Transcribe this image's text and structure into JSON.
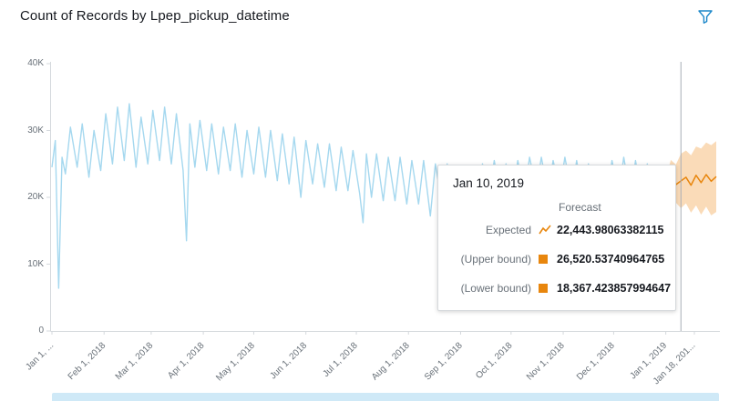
{
  "header": {
    "title": "Count of Records by Lpep_pickup_datetime"
  },
  "colors": {
    "history_line": "#a5d8ef",
    "forecast_line": "#e8860d",
    "forecast_band": "#f6bd7e",
    "accent_blue": "#1b87c9",
    "crosshair": "#a6adb5",
    "scrollbar": "#cfe9f7"
  },
  "tooltip": {
    "date": "Jan 10, 2019",
    "column_header": "Forecast",
    "rows": [
      {
        "label": "Expected",
        "icon": "trend-line",
        "value": "22,443.98063382115"
      },
      {
        "label": "(Upper bound)",
        "icon": "square",
        "value": "26,520.53740964765"
      },
      {
        "label": "(Lower bound)",
        "icon": "square",
        "value": "18,367.423857994647"
      }
    ]
  },
  "chart_data": {
    "type": "line",
    "title": "Count of Records by Lpep_pickup_datetime",
    "xlabel": "Lpep_pickup_datetime",
    "ylabel": "Count of Records",
    "x_unit": "days since Jan 1, 2018",
    "ylim": [
      0,
      40000
    ],
    "grid": false,
    "y_ticks": [
      {
        "value": 0,
        "label": "0"
      },
      {
        "value": 10000,
        "label": "10K"
      },
      {
        "value": 20000,
        "label": "20K"
      },
      {
        "value": 30000,
        "label": "30K"
      },
      {
        "value": 40000,
        "label": "40K"
      }
    ],
    "x_ticks": [
      {
        "day": 0,
        "label": "Jan 1, ..."
      },
      {
        "day": 31,
        "label": "Feb 1, 2018"
      },
      {
        "day": 59,
        "label": "Mar 1, 2018"
      },
      {
        "day": 90,
        "label": "Apr 1, 2018"
      },
      {
        "day": 120,
        "label": "May 1, 2018"
      },
      {
        "day": 151,
        "label": "Jun 1, 2018"
      },
      {
        "day": 181,
        "label": "Jul 1, 2018"
      },
      {
        "day": 212,
        "label": "Aug 1, 2018"
      },
      {
        "day": 243,
        "label": "Sep 1, 2018"
      },
      {
        "day": 273,
        "label": "Oct 1, 2018"
      },
      {
        "day": 304,
        "label": "Nov 1, 2018"
      },
      {
        "day": 334,
        "label": "Dec 1, 2018"
      },
      {
        "day": 365,
        "label": "Jan 1, 2019"
      },
      {
        "day": 382,
        "label": "Jan 18, 201..."
      }
    ],
    "series": [
      {
        "name": "Count of Records",
        "color": "#a5d8ef",
        "points": [
          [
            0,
            24500
          ],
          [
            2,
            28500
          ],
          [
            4,
            6400
          ],
          [
            6,
            26000
          ],
          [
            8,
            23500
          ],
          [
            11,
            30500
          ],
          [
            15,
            24500
          ],
          [
            18,
            31000
          ],
          [
            22,
            23000
          ],
          [
            25,
            30000
          ],
          [
            29,
            24000
          ],
          [
            32,
            32500
          ],
          [
            36,
            25000
          ],
          [
            39,
            33500
          ],
          [
            43,
            25500
          ],
          [
            46,
            34000
          ],
          [
            50,
            24500
          ],
          [
            53,
            32000
          ],
          [
            57,
            25000
          ],
          [
            60,
            33000
          ],
          [
            64,
            25500
          ],
          [
            67,
            33500
          ],
          [
            71,
            25000
          ],
          [
            74,
            32500
          ],
          [
            78,
            24000
          ],
          [
            80,
            13500
          ],
          [
            82,
            31000
          ],
          [
            85,
            24500
          ],
          [
            88,
            31500
          ],
          [
            92,
            24000
          ],
          [
            95,
            31000
          ],
          [
            99,
            23500
          ],
          [
            102,
            30500
          ],
          [
            106,
            24000
          ],
          [
            109,
            31000
          ],
          [
            113,
            23000
          ],
          [
            116,
            30000
          ],
          [
            120,
            23500
          ],
          [
            123,
            30500
          ],
          [
            127,
            23000
          ],
          [
            130,
            30000
          ],
          [
            134,
            22500
          ],
          [
            137,
            29500
          ],
          [
            141,
            22000
          ],
          [
            144,
            29000
          ],
          [
            148,
            20000
          ],
          [
            151,
            28500
          ],
          [
            155,
            22000
          ],
          [
            158,
            28000
          ],
          [
            162,
            21500
          ],
          [
            165,
            28000
          ],
          [
            169,
            21000
          ],
          [
            172,
            27500
          ],
          [
            176,
            21000
          ],
          [
            179,
            27000
          ],
          [
            183,
            20500
          ],
          [
            185,
            16200
          ],
          [
            187,
            26500
          ],
          [
            190,
            20000
          ],
          [
            193,
            26500
          ],
          [
            197,
            19500
          ],
          [
            200,
            26000
          ],
          [
            204,
            19500
          ],
          [
            207,
            26000
          ],
          [
            211,
            19000
          ],
          [
            214,
            25500
          ],
          [
            218,
            19000
          ],
          [
            221,
            25500
          ],
          [
            225,
            17200
          ],
          [
            228,
            25000
          ],
          [
            232,
            19000
          ],
          [
            235,
            25000
          ],
          [
            239,
            18500
          ],
          [
            242,
            24500
          ],
          [
            246,
            17500
          ],
          [
            249,
            24500
          ],
          [
            253,
            20000
          ],
          [
            256,
            25000
          ],
          [
            260,
            20500
          ],
          [
            263,
            25500
          ],
          [
            267,
            20000
          ],
          [
            270,
            25000
          ],
          [
            274,
            20500
          ],
          [
            277,
            25500
          ],
          [
            281,
            20500
          ],
          [
            284,
            26000
          ],
          [
            288,
            21000
          ],
          [
            291,
            26000
          ],
          [
            295,
            20500
          ],
          [
            298,
            25500
          ],
          [
            302,
            21000
          ],
          [
            305,
            26000
          ],
          [
            309,
            20500
          ],
          [
            312,
            25500
          ],
          [
            316,
            19500
          ],
          [
            319,
            25000
          ],
          [
            323,
            18500
          ],
          [
            326,
            24500
          ],
          [
            330,
            20000
          ],
          [
            333,
            25500
          ],
          [
            337,
            20500
          ],
          [
            340,
            26000
          ],
          [
            344,
            20000
          ],
          [
            347,
            25500
          ],
          [
            351,
            19500
          ],
          [
            354,
            25000
          ],
          [
            359,
            16500
          ],
          [
            362,
            24500
          ],
          [
            363,
            23000
          ]
        ]
      }
    ],
    "forecast": {
      "name": "Forecast",
      "color": "#e8860d",
      "band_color": "#f6bd7e",
      "days": [
        363,
        365,
        368,
        371,
        374,
        377,
        380,
        383,
        386,
        389,
        392,
        395
      ],
      "expected": [
        23000,
        20500,
        23800,
        21900,
        22443.98063382115,
        23000,
        21800,
        23300,
        22200,
        23400,
        22400,
        23100
      ],
      "upper": [
        23000,
        22800,
        25600,
        24900,
        26520.53740964765,
        27000,
        26300,
        27600,
        27300,
        28200,
        27800,
        28400
      ],
      "lower": [
        23000,
        18500,
        21500,
        19200,
        18367.423857994647,
        19100,
        17700,
        18800,
        17400,
        18600,
        17300,
        17800
      ]
    },
    "crosshair_day": 374
  }
}
